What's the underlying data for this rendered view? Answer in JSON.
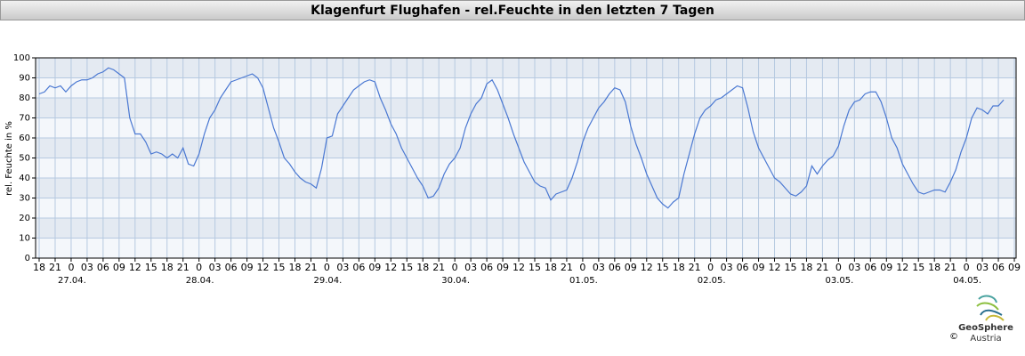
{
  "chart_data": {
    "type": "line",
    "title": "Klagenfurt Flughafen - rel.Feuchte in den letzten 7 Tagen",
    "y_label": "rel. Feuchte in %",
    "series": [
      {
        "name": "rel. Feuchte",
        "color": "#4a78d2",
        "values": [
          82,
          83,
          86,
          85,
          86,
          83,
          86,
          88,
          89,
          89,
          90,
          92,
          93,
          95,
          94,
          92,
          90,
          70,
          62,
          62,
          58,
          52,
          53,
          52,
          50,
          52,
          50,
          55,
          47,
          46,
          52,
          62,
          70,
          74,
          80,
          84,
          88,
          89,
          90,
          91,
          92,
          90,
          85,
          75,
          65,
          58,
          50,
          47,
          43,
          40,
          38,
          37,
          35,
          45,
          60,
          61,
          72,
          76,
          80,
          84,
          86,
          88,
          89,
          88,
          80,
          74,
          67,
          62,
          55,
          50,
          45,
          40,
          36,
          30,
          31,
          35,
          42,
          47,
          50,
          55,
          65,
          72,
          77,
          80,
          87,
          89,
          84,
          77,
          70,
          62,
          55,
          48,
          43,
          38,
          36,
          35,
          29,
          32,
          33,
          34,
          40,
          48,
          58,
          65,
          70,
          75,
          78,
          82,
          85,
          84,
          78,
          66,
          57,
          50,
          42,
          36,
          30,
          27,
          25,
          28,
          30,
          42,
          52,
          62,
          70,
          74,
          76,
          79,
          80,
          82,
          84,
          86,
          85,
          75,
          63,
          55,
          50,
          45,
          40,
          38,
          35,
          32,
          31,
          33,
          36,
          46,
          42,
          46,
          49,
          51,
          56,
          66,
          74,
          78,
          79,
          82,
          83,
          83,
          78,
          70,
          60,
          55,
          47,
          42,
          37,
          33,
          32,
          33,
          34,
          34,
          33,
          38,
          44,
          53,
          60,
          70,
          75,
          74,
          72,
          76,
          76,
          79
        ]
      }
    ],
    "xlim": [
      -0.67,
      183.33
    ],
    "xticks": [
      {
        "value": 0,
        "label": "18"
      },
      {
        "value": 3,
        "label": "21"
      },
      {
        "value": 6,
        "label": "0"
      },
      {
        "value": 9,
        "label": "03"
      },
      {
        "value": 12,
        "label": "06"
      },
      {
        "value": 15,
        "label": "09"
      },
      {
        "value": 18,
        "label": "12"
      },
      {
        "value": 21,
        "label": "15"
      },
      {
        "value": 24,
        "label": "18"
      },
      {
        "value": 27,
        "label": "21"
      },
      {
        "value": 30,
        "label": "0"
      },
      {
        "value": 33,
        "label": "03"
      },
      {
        "value": 36,
        "label": "06"
      },
      {
        "value": 39,
        "label": "09"
      },
      {
        "value": 42,
        "label": "12"
      },
      {
        "value": 45,
        "label": "15"
      },
      {
        "value": 48,
        "label": "18"
      },
      {
        "value": 51,
        "label": "21"
      },
      {
        "value": 54,
        "label": "0"
      },
      {
        "value": 57,
        "label": "03"
      },
      {
        "value": 60,
        "label": "06"
      },
      {
        "value": 63,
        "label": "09"
      },
      {
        "value": 66,
        "label": "12"
      },
      {
        "value": 69,
        "label": "15"
      },
      {
        "value": 72,
        "label": "18"
      },
      {
        "value": 75,
        "label": "21"
      },
      {
        "value": 78,
        "label": "0"
      },
      {
        "value": 81,
        "label": "03"
      },
      {
        "value": 84,
        "label": "06"
      },
      {
        "value": 87,
        "label": "09"
      },
      {
        "value": 90,
        "label": "12"
      },
      {
        "value": 93,
        "label": "15"
      },
      {
        "value": 96,
        "label": "18"
      },
      {
        "value": 99,
        "label": "21"
      },
      {
        "value": 102,
        "label": "0"
      },
      {
        "value": 105,
        "label": "03"
      },
      {
        "value": 108,
        "label": "06"
      },
      {
        "value": 111,
        "label": "09"
      },
      {
        "value": 114,
        "label": "12"
      },
      {
        "value": 117,
        "label": "15"
      },
      {
        "value": 120,
        "label": "18"
      },
      {
        "value": 123,
        "label": "21"
      },
      {
        "value": 126,
        "label": "0"
      },
      {
        "value": 129,
        "label": "03"
      },
      {
        "value": 132,
        "label": "06"
      },
      {
        "value": 135,
        "label": "09"
      },
      {
        "value": 138,
        "label": "12"
      },
      {
        "value": 141,
        "label": "15"
      },
      {
        "value": 144,
        "label": "18"
      },
      {
        "value": 147,
        "label": "21"
      },
      {
        "value": 150,
        "label": "0"
      },
      {
        "value": 153,
        "label": "03"
      },
      {
        "value": 156,
        "label": "06"
      },
      {
        "value": 159,
        "label": "09"
      },
      {
        "value": 162,
        "label": "12"
      },
      {
        "value": 165,
        "label": "15"
      },
      {
        "value": 168,
        "label": "18"
      },
      {
        "value": 171,
        "label": "21"
      },
      {
        "value": 174,
        "label": "0"
      },
      {
        "value": 177,
        "label": "03"
      },
      {
        "value": 180,
        "label": "06"
      },
      {
        "value": 183,
        "label": "09"
      }
    ],
    "date_labels": [
      {
        "value": 6,
        "label": "27.04."
      },
      {
        "value": 30,
        "label": "28.04."
      },
      {
        "value": 54,
        "label": "29.04."
      },
      {
        "value": 78,
        "label": "30.04."
      },
      {
        "value": 102,
        "label": "01.05."
      },
      {
        "value": 126,
        "label": "02.05."
      },
      {
        "value": 150,
        "label": "03.05."
      },
      {
        "value": 174,
        "label": "04.05."
      }
    ],
    "ylim": [
      0,
      100
    ],
    "yticks": [
      0,
      10,
      20,
      30,
      40,
      50,
      60,
      70,
      80,
      90,
      100
    ],
    "grid": true,
    "logo": {
      "name": "GeoSphere",
      "sub": "Austria",
      "copyright": "©"
    }
  }
}
